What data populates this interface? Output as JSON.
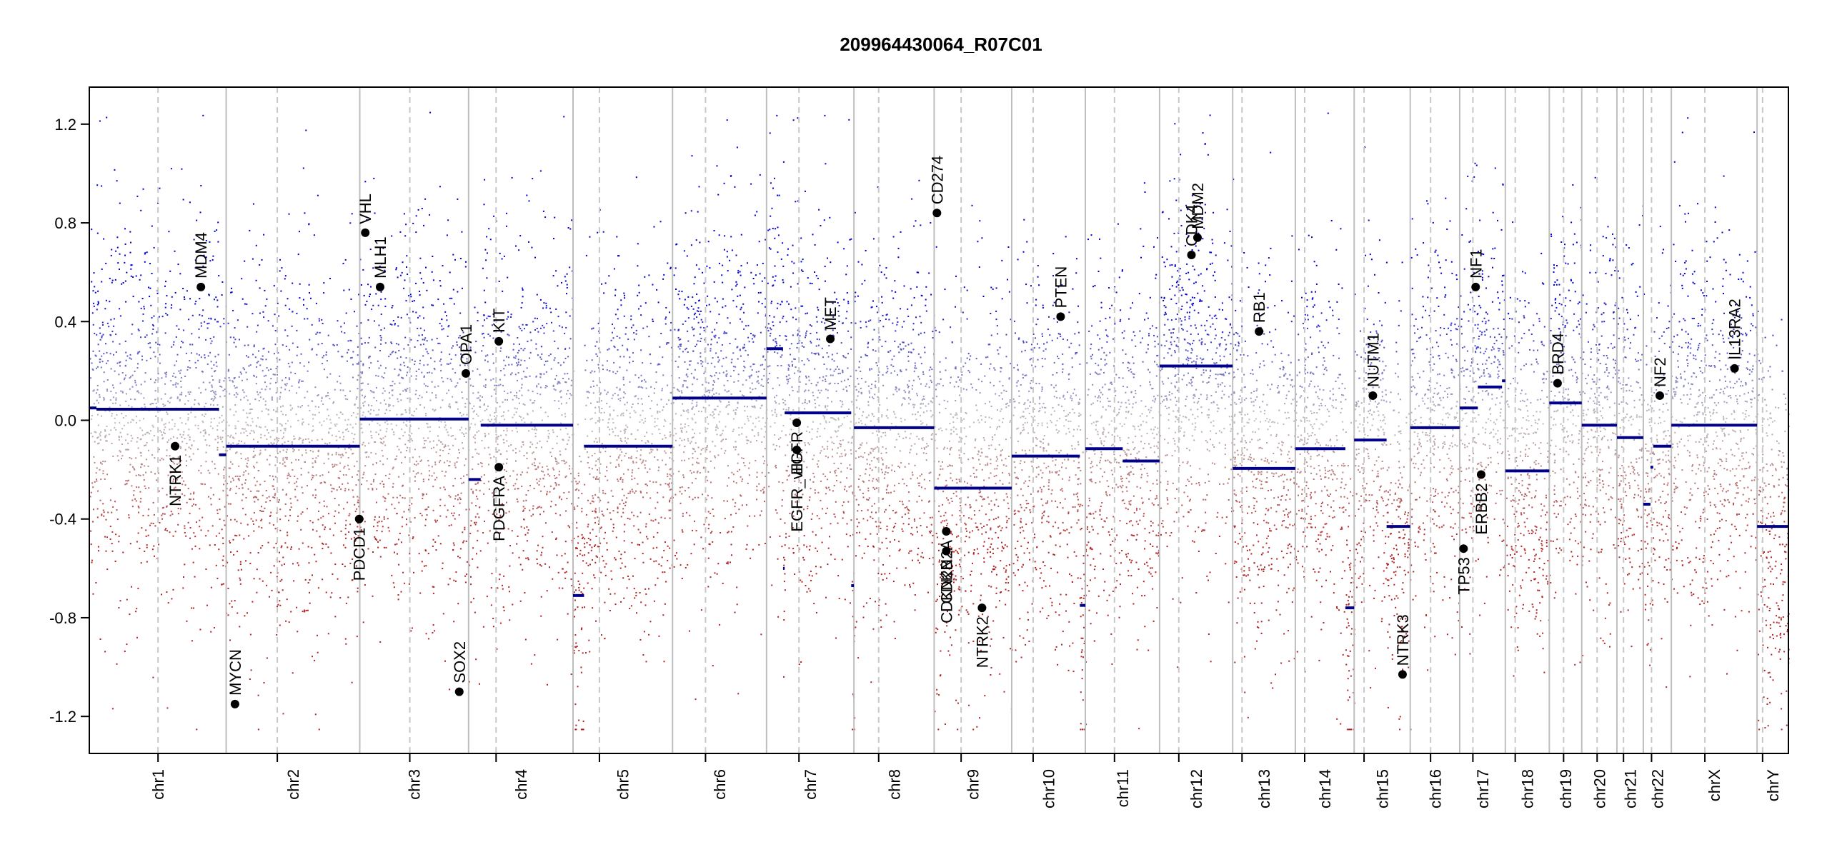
{
  "chart_data": {
    "type": "scatter",
    "title": "209964430064_R07C01",
    "xlabel": "",
    "ylabel": "",
    "ylim": [
      -1.35,
      1.35
    ],
    "yticks": [
      1.2,
      0.8,
      0.4,
      0.0,
      -0.4,
      -0.8,
      -1.2
    ],
    "ytick_labels": [
      "1.2",
      "0.8",
      "0.4",
      "0.0",
      "-0.4",
      "-0.8",
      "-1.2"
    ],
    "grid": false,
    "chromosome_span_units": "Mb",
    "chromosomes": [
      {
        "name": "chr1",
        "start": 0,
        "end": 249,
        "centromere": 125
      },
      {
        "name": "chr2",
        "start": 249,
        "end": 492,
        "centromere": 342
      },
      {
        "name": "chr3",
        "start": 492,
        "end": 690,
        "centromere": 583
      },
      {
        "name": "chr4",
        "start": 690,
        "end": 880,
        "centromere": 740
      },
      {
        "name": "chr5",
        "start": 880,
        "end": 1061,
        "centromere": 928
      },
      {
        "name": "chr6",
        "start": 1061,
        "end": 1232,
        "centromere": 1121
      },
      {
        "name": "chr7",
        "start": 1232,
        "end": 1391,
        "centromere": 1291
      },
      {
        "name": "chr8",
        "start": 1391,
        "end": 1537,
        "centromere": 1436
      },
      {
        "name": "chr9",
        "start": 1537,
        "end": 1678,
        "centromere": 1586
      },
      {
        "name": "chr10",
        "start": 1678,
        "end": 1812,
        "centromere": 1717
      },
      {
        "name": "chr11",
        "start": 1812,
        "end": 1947,
        "centromere": 1865
      },
      {
        "name": "chr12",
        "start": 1947,
        "end": 2080,
        "centromere": 1982
      },
      {
        "name": "chr13",
        "start": 2080,
        "end": 2194,
        "centromere": 2097
      },
      {
        "name": "chr14",
        "start": 2194,
        "end": 2301,
        "centromere": 2211
      },
      {
        "name": "chr15",
        "start": 2301,
        "end": 2403,
        "centromere": 2319
      },
      {
        "name": "chr16",
        "start": 2403,
        "end": 2493,
        "centromere": 2440
      },
      {
        "name": "chr17",
        "start": 2493,
        "end": 2576,
        "centromere": 2517
      },
      {
        "name": "chr18",
        "start": 2576,
        "end": 2656,
        "centromere": 2594
      },
      {
        "name": "chr19",
        "start": 2656,
        "end": 2715,
        "centromere": 2682
      },
      {
        "name": "chr20",
        "start": 2715,
        "end": 2779,
        "centromere": 2743
      },
      {
        "name": "chr21",
        "start": 2779,
        "end": 2827,
        "centromere": 2791
      },
      {
        "name": "chr22",
        "start": 2827,
        "end": 2878,
        "centromere": 2842
      },
      {
        "name": "chrX",
        "start": 2878,
        "end": 3034,
        "centromere": 2939
      },
      {
        "name": "chrY",
        "start": 3034,
        "end": 3091,
        "centromere": 3044
      }
    ],
    "segments": [
      {
        "start": 0,
        "end": 13,
        "value": 0.05
      },
      {
        "start": 13,
        "end": 236,
        "value": 0.045
      },
      {
        "start": 236,
        "end": 249,
        "value": -0.14
      },
      {
        "start": 249,
        "end": 492,
        "value": -0.105
      },
      {
        "start": 492,
        "end": 690,
        "value": 0.005
      },
      {
        "start": 690,
        "end": 712,
        "value": -0.24
      },
      {
        "start": 712,
        "end": 880,
        "value": -0.02
      },
      {
        "start": 880,
        "end": 900,
        "value": -0.71
      },
      {
        "start": 900,
        "end": 1061,
        "value": -0.105
      },
      {
        "start": 1061,
        "end": 1232,
        "value": 0.09
      },
      {
        "start": 1232,
        "end": 1262,
        "value": 0.29
      },
      {
        "start": 1262,
        "end": 1265,
        "value": -0.6
      },
      {
        "start": 1265,
        "end": 1386,
        "value": 0.03
      },
      {
        "start": 1386,
        "end": 1391,
        "value": -0.67
      },
      {
        "start": 1391,
        "end": 1537,
        "value": -0.03
      },
      {
        "start": 1537,
        "end": 1678,
        "value": -0.275
      },
      {
        "start": 1678,
        "end": 1802,
        "value": -0.145
      },
      {
        "start": 1802,
        "end": 1812,
        "value": -0.75
      },
      {
        "start": 1812,
        "end": 1880,
        "value": -0.115
      },
      {
        "start": 1880,
        "end": 1947,
        "value": -0.165
      },
      {
        "start": 1947,
        "end": 2080,
        "value": 0.22
      },
      {
        "start": 2080,
        "end": 2194,
        "value": -0.195
      },
      {
        "start": 2194,
        "end": 2285,
        "value": -0.115
      },
      {
        "start": 2285,
        "end": 2301,
        "value": -0.76
      },
      {
        "start": 2301,
        "end": 2360,
        "value": -0.08
      },
      {
        "start": 2360,
        "end": 2403,
        "value": -0.43
      },
      {
        "start": 2403,
        "end": 2493,
        "value": -0.03
      },
      {
        "start": 2493,
        "end": 2526,
        "value": 0.05
      },
      {
        "start": 2526,
        "end": 2570,
        "value": 0.135
      },
      {
        "start": 2570,
        "end": 2576,
        "value": 0.16
      },
      {
        "start": 2576,
        "end": 2656,
        "value": -0.205
      },
      {
        "start": 2656,
        "end": 2715,
        "value": 0.07
      },
      {
        "start": 2715,
        "end": 2779,
        "value": -0.02
      },
      {
        "start": 2779,
        "end": 2827,
        "value": -0.07
      },
      {
        "start": 2827,
        "end": 2840,
        "value": -0.34
      },
      {
        "start": 2840,
        "end": 2845,
        "value": -0.19
      },
      {
        "start": 2845,
        "end": 2878,
        "value": -0.105
      },
      {
        "start": 2878,
        "end": 3034,
        "value": -0.02
      },
      {
        "start": 3034,
        "end": 3091,
        "value": -0.43
      }
    ],
    "genes": [
      {
        "name": "NTRK1",
        "pos": 156,
        "value": -0.105,
        "side": "below"
      },
      {
        "name": "MDM4",
        "pos": 203,
        "value": 0.54,
        "side": "above"
      },
      {
        "name": "MYCN",
        "pos": 265,
        "value": -1.15,
        "side": "above"
      },
      {
        "name": "PDCD1",
        "pos": 491,
        "value": -0.4,
        "side": "below"
      },
      {
        "name": "VHL",
        "pos": 502,
        "value": 0.76,
        "side": "above"
      },
      {
        "name": "MLH1",
        "pos": 529,
        "value": 0.54,
        "side": "above"
      },
      {
        "name": "SOX2",
        "pos": 673,
        "value": -1.1,
        "side": "above"
      },
      {
        "name": "OPA1",
        "pos": 685,
        "value": 0.19,
        "side": "above"
      },
      {
        "name": "KIT",
        "pos": 745,
        "value": 0.32,
        "side": "above"
      },
      {
        "name": "PDGFRA",
        "pos": 745,
        "value": -0.19,
        "side": "below"
      },
      {
        "name": "EGFR",
        "pos": 1287,
        "value": -0.01,
        "side": "below"
      },
      {
        "name": "EGFR_vIII",
        "pos": 1287,
        "value": -0.12,
        "side": "below"
      },
      {
        "name": "MET",
        "pos": 1348,
        "value": 0.33,
        "side": "above"
      },
      {
        "name": "CD274",
        "pos": 1542,
        "value": 0.84,
        "side": "above"
      },
      {
        "name": "CDKN2A",
        "pos": 1559,
        "value": -0.45,
        "side": "below"
      },
      {
        "name": "CDKN2B",
        "pos": 1559,
        "value": -0.53,
        "side": "below"
      },
      {
        "name": "NTRK2",
        "pos": 1624,
        "value": -0.76,
        "side": "below"
      },
      {
        "name": "PTEN",
        "pos": 1767,
        "value": 0.42,
        "side": "above"
      },
      {
        "name": "CDK4",
        "pos": 2005,
        "value": 0.67,
        "side": "above"
      },
      {
        "name": "MDM2",
        "pos": 2016,
        "value": 0.74,
        "side": "above"
      },
      {
        "name": "RB1",
        "pos": 2128,
        "value": 0.36,
        "side": "above"
      },
      {
        "name": "NUTM1",
        "pos": 2335,
        "value": 0.1,
        "side": "above"
      },
      {
        "name": "NTRK3",
        "pos": 2389,
        "value": -1.03,
        "side": "above"
      },
      {
        "name": "TP53",
        "pos": 2500,
        "value": -0.52,
        "side": "below"
      },
      {
        "name": "NF1",
        "pos": 2522,
        "value": 0.54,
        "side": "above"
      },
      {
        "name": "ERBB2",
        "pos": 2532,
        "value": -0.22,
        "side": "below"
      },
      {
        "name": "BRD4",
        "pos": 2671,
        "value": 0.15,
        "side": "above"
      },
      {
        "name": "NF2",
        "pos": 2857,
        "value": 0.1,
        "side": "above"
      },
      {
        "name": "IL13RA2",
        "pos": 2993,
        "value": 0.21,
        "side": "above"
      }
    ],
    "colors": {
      "gain": "#0000cc",
      "loss": "#b22222",
      "neutral": "#bdbdbd",
      "segment": "#00008b",
      "chromosome_border": "#bebebe",
      "centromere_line": "#c8c8c8",
      "gene_point": "#000000"
    }
  }
}
